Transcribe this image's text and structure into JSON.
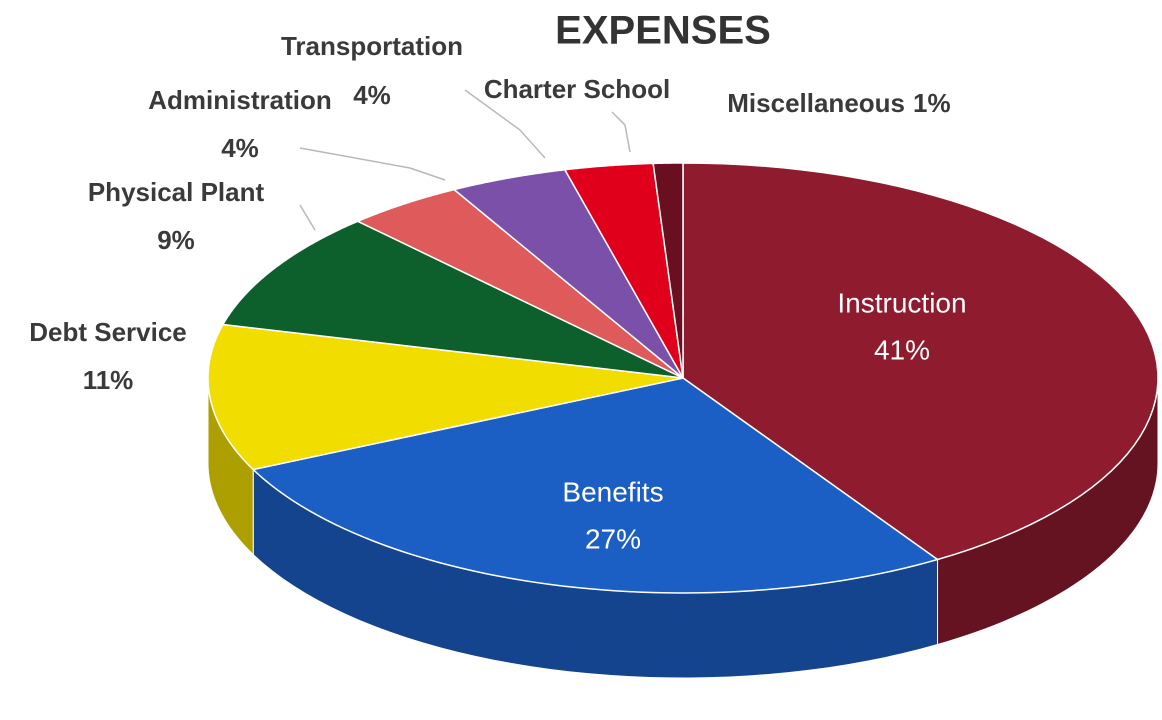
{
  "chart_data": {
    "type": "pie",
    "title": "EXPENSES",
    "categories": [
      "Instruction",
      "Benefits",
      "Debt Service",
      "Physical Plant",
      "Administration",
      "Transportation",
      "Charter School",
      "Miscellaneous"
    ],
    "values": [
      41,
      27,
      11,
      9,
      4,
      4,
      3,
      1
    ],
    "value_labels": [
      "41%",
      "27%",
      "11%",
      "9%",
      "4%",
      "4%",
      null,
      "1%"
    ],
    "colors": [
      "#8e1b2e",
      "#1c5fc4",
      "#f2dd00",
      "#0d5f2c",
      "#df5b5b",
      "#7b50a9",
      "#e1001c",
      "#6a0f20"
    ]
  }
}
